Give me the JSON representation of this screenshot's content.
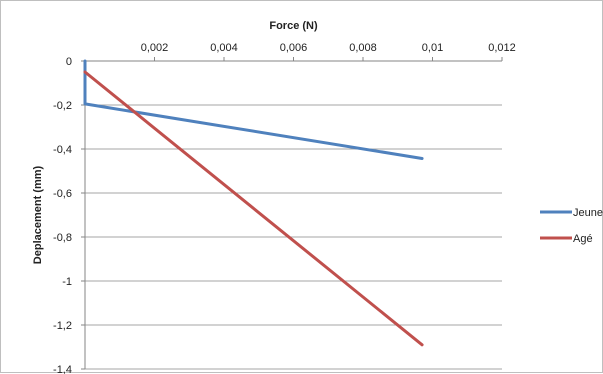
{
  "chart_data": {
    "type": "line",
    "xlabel": "Force (N)",
    "ylabel": "Deplacement (mm)",
    "xlim": [
      0,
      0.012
    ],
    "ylim": [
      -1.4,
      0
    ],
    "x_ticks": [
      0.002,
      0.004,
      0.006,
      0.008,
      0.01,
      0.012
    ],
    "x_tick_labels": [
      "0,002",
      "0,004",
      "0,006",
      "0,008",
      "0,01",
      "0,012"
    ],
    "y_ticks": [
      0,
      -0.2,
      -0.4,
      -0.6,
      -0.8,
      -1,
      -1.2,
      -1.4
    ],
    "y_tick_labels": [
      "0",
      "-0,2",
      "-0,4",
      "-0,6",
      "-0,8",
      "-1",
      "-1,2",
      "-1,4"
    ],
    "x_axis_position": "top",
    "grid": "horizontal",
    "legend_position": "right",
    "series": [
      {
        "name": "Jeune",
        "color": "#4f81bd",
        "x": [
          0,
          0,
          0.0097
        ],
        "y": [
          0,
          -0.195,
          -0.443
        ]
      },
      {
        "name": "Agé",
        "color": "#c0504d",
        "x": [
          0,
          0.0097
        ],
        "y": [
          -0.05,
          -1.29
        ]
      }
    ]
  }
}
